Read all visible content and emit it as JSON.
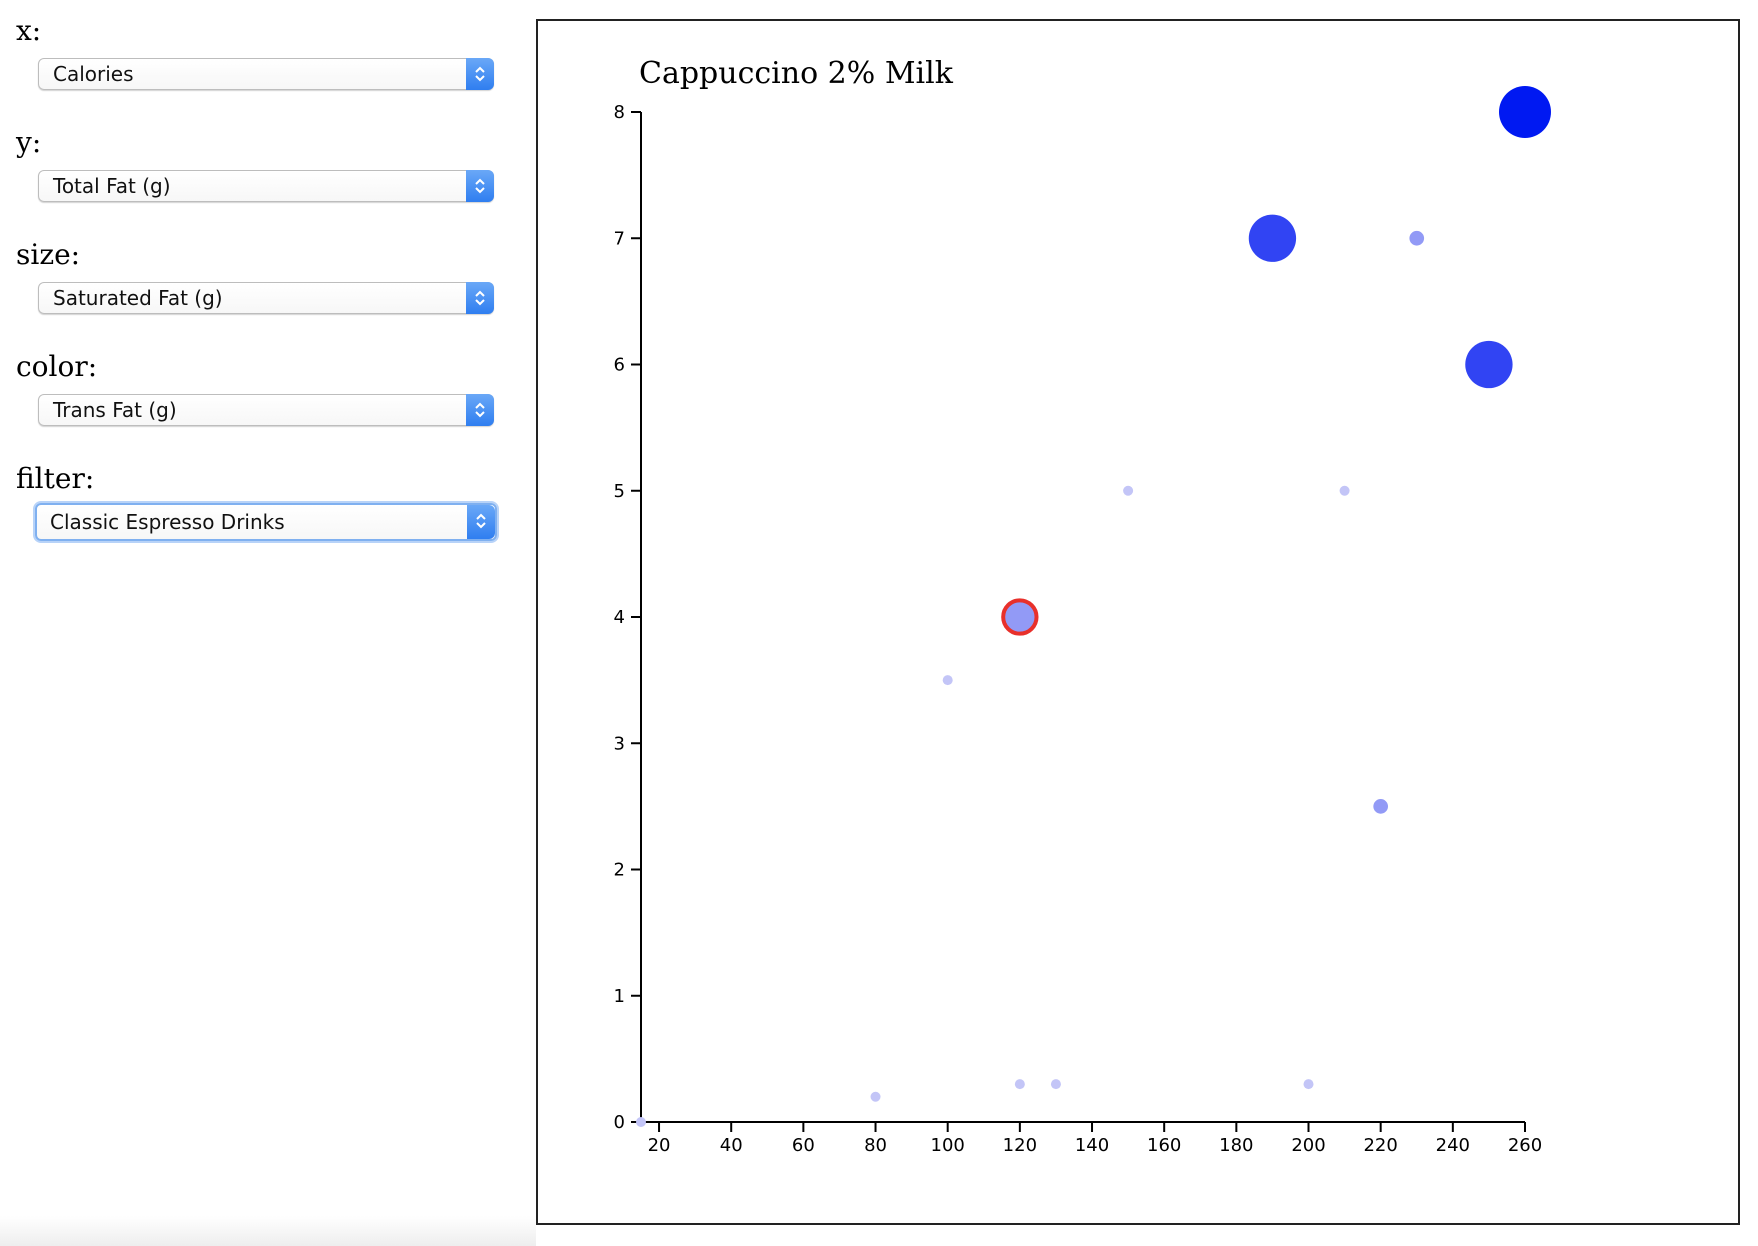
{
  "controls": {
    "x": {
      "label": "x:",
      "value": "Calories"
    },
    "y": {
      "label": "y:",
      "value": "Total Fat (g)"
    },
    "size": {
      "label": "size:",
      "value": "Saturated Fat (g)"
    },
    "color": {
      "label": "color:",
      "value": "Trans Fat (g)"
    },
    "filter": {
      "label": "filter:",
      "value": "Classic Espresso Drinks"
    }
  },
  "colors": {
    "point_light": "#c3c5f7",
    "point_mid": "#7275ee",
    "point_dark": "#0019f2",
    "highlight_stroke": "#e8302b",
    "axis": "#000000"
  },
  "chart_data": {
    "type": "scatter",
    "title": "Cappuccino 2% Milk",
    "xlabel": "",
    "ylabel": "",
    "xlim": [
      15,
      260
    ],
    "ylim": [
      0,
      8
    ],
    "x_ticks": [
      20,
      40,
      60,
      80,
      100,
      120,
      140,
      160,
      180,
      200,
      220,
      240,
      260
    ],
    "y_ticks": [
      0,
      1,
      2,
      3,
      4,
      5,
      6,
      7,
      8
    ],
    "grid": false,
    "size_encoding": "Saturated Fat (g)",
    "color_encoding": "Trans Fat (g)",
    "points": [
      {
        "x": 15,
        "y": 0,
        "size": 0,
        "color_value": 0
      },
      {
        "x": 80,
        "y": 0.2,
        "size": 0,
        "color_value": 0
      },
      {
        "x": 120,
        "y": 0.3,
        "size": 0,
        "color_value": 0
      },
      {
        "x": 130,
        "y": 0.3,
        "size": 0,
        "color_value": 0
      },
      {
        "x": 200,
        "y": 0.3,
        "size": 0,
        "color_value": 0
      },
      {
        "x": 100,
        "y": 3.5,
        "size": 0,
        "color_value": 0
      },
      {
        "x": 150,
        "y": 5,
        "size": 0,
        "color_value": 0
      },
      {
        "x": 210,
        "y": 5,
        "size": 0,
        "color_value": 0
      },
      {
        "x": 220,
        "y": 2.5,
        "size": 0.5,
        "color_value": 0.5
      },
      {
        "x": 230,
        "y": 7,
        "size": 0.5,
        "color_value": 0.5
      },
      {
        "x": 120,
        "y": 4,
        "size": 2.5,
        "color_value": 0.5,
        "highlighted": true,
        "label": "Cappuccino 2% Milk"
      },
      {
        "x": 190,
        "y": 7,
        "size": 4,
        "color_value": 1.5
      },
      {
        "x": 250,
        "y": 6,
        "size": 4,
        "color_value": 1.5
      },
      {
        "x": 260,
        "y": 8,
        "size": 4.5,
        "color_value": 2
      }
    ]
  }
}
